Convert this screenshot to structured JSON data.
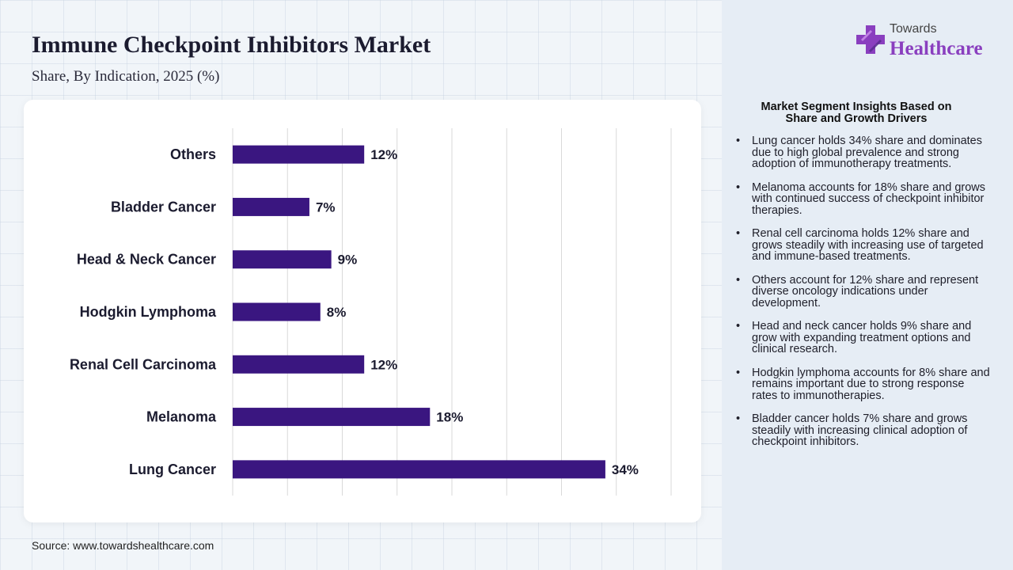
{
  "header": {
    "title": "Immune Checkpoint Inhibitors Market",
    "subtitle": "Share, By Indication, 2025 (%)"
  },
  "logo": {
    "top": "Towards",
    "main": "Healthcare",
    "icon": "medical-cross-icon"
  },
  "source": "Source: www.towardshealthcare.com",
  "colors": {
    "bar": "#3a1680",
    "accent": "#8a3fbf",
    "grid": "#d9d9d9"
  },
  "chart_data": {
    "type": "bar",
    "orientation": "horizontal",
    "categories": [
      "Others",
      "Bladder Cancer",
      "Head & Neck Cancer",
      "Hodgkin Lymphoma",
      "Renal Cell Carcinoma",
      "Melanoma",
      "Lung Cancer"
    ],
    "values": [
      12,
      7,
      9,
      8,
      12,
      18,
      34
    ],
    "data_labels": [
      "12%",
      "7%",
      "9%",
      "8%",
      "12%",
      "18%",
      "34%"
    ],
    "xlim": [
      0,
      40
    ],
    "grid": true,
    "title": "",
    "xlabel": "",
    "ylabel": ""
  },
  "insights": {
    "title_line1": "Market Segment Insights Based on",
    "title_line2": "Share and Growth Drivers",
    "items": [
      "Lung cancer holds 34% share and dominates due to high global prevalence and strong adoption of immunotherapy treatments.",
      "Melanoma accounts for 18% share and grows with continued success of checkpoint inhibitor therapies.",
      "Renal cell carcinoma holds 12% share and grows steadily with increasing use of targeted and immune-based treatments.",
      "Others account for 12% share and represent diverse oncology indications under development.",
      "Head and neck cancer holds 9% share and grow with expanding treatment options and clinical research.",
      "Hodgkin lymphoma accounts for 8% share and remains important due to strong response rates to immunotherapies.",
      "Bladder cancer holds 7% share and grows steadily with increasing clinical adoption of checkpoint inhibitors."
    ]
  }
}
